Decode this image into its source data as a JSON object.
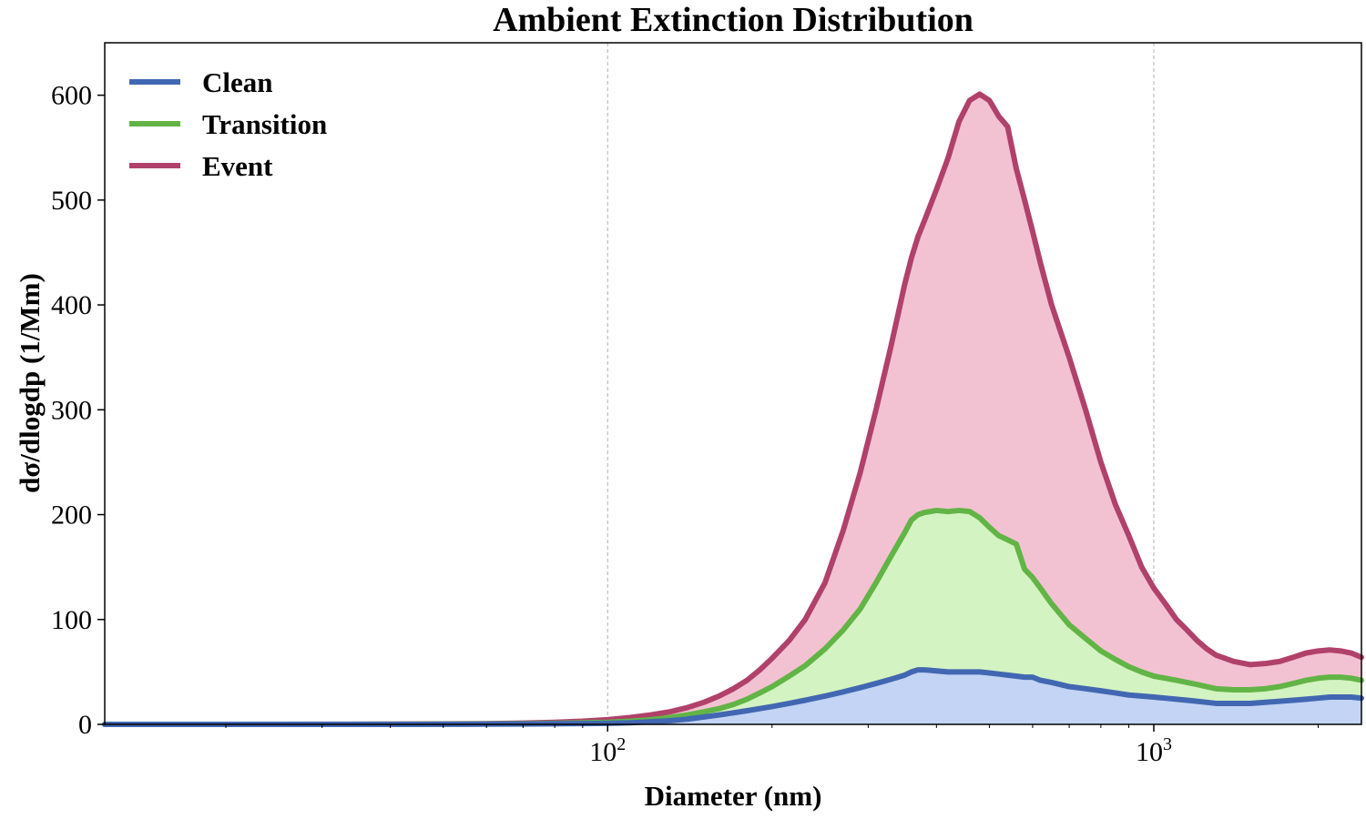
{
  "chart_data": {
    "type": "area",
    "title": "Ambient Extinction Distribution",
    "xlabel": "Diameter (nm)",
    "ylabel": "dσ/dlogdp (1/Mm)",
    "xscale": "log",
    "xlim": [
      12,
      2400
    ],
    "ylim": [
      0,
      650
    ],
    "yticks": [
      0,
      100,
      200,
      300,
      400,
      500,
      600
    ],
    "xticks": [
      {
        "value": 100,
        "base": "10",
        "exp": "2"
      },
      {
        "value": 1000,
        "base": "10",
        "exp": "3"
      }
    ],
    "grid": "vertical-major-dashed",
    "legend_position": "top-left",
    "x": [
      12,
      20,
      30,
      40,
      50,
      60,
      70,
      80,
      90,
      100,
      110,
      120,
      130,
      140,
      150,
      160,
      170,
      180,
      190,
      200,
      215,
      230,
      250,
      270,
      290,
      310,
      330,
      350,
      360,
      370,
      380,
      400,
      420,
      440,
      460,
      480,
      500,
      520,
      540,
      560,
      580,
      600,
      620,
      650,
      700,
      750,
      800,
      850,
      900,
      950,
      1000,
      1050,
      1100,
      1150,
      1200,
      1250,
      1300,
      1400,
      1500,
      1600,
      1700,
      1800,
      1900,
      2000,
      2100,
      2200,
      2300,
      2400
    ],
    "series": [
      {
        "name": "Clean",
        "color": "#4267b2",
        "fill": "#c3d4f4",
        "values": [
          0,
          0,
          0,
          0,
          0.1,
          0.2,
          0.3,
          0.5,
          0.8,
          1,
          1.5,
          2.5,
          3.5,
          5,
          7,
          9,
          11,
          13,
          15,
          17,
          20,
          23,
          27,
          31,
          35,
          39,
          43,
          47,
          50,
          52,
          52,
          51,
          50,
          50,
          50,
          50,
          49,
          48,
          47,
          46,
          45,
          45,
          42,
          40,
          36,
          34,
          32,
          30,
          28,
          27,
          26,
          25,
          24,
          23,
          22,
          21,
          20,
          20,
          20,
          21,
          22,
          23,
          24,
          25,
          26,
          26,
          26,
          25
        ]
      },
      {
        "name": "Transition",
        "color": "#62b446",
        "fill": "#d4f3c2",
        "values": [
          0,
          0,
          0,
          0.1,
          0.2,
          0.4,
          0.6,
          1,
          1.5,
          2,
          3,
          4.5,
          6.5,
          9,
          12,
          15,
          19,
          24,
          30,
          36,
          46,
          56,
          72,
          90,
          110,
          135,
          160,
          183,
          195,
          200,
          202,
          204,
          203,
          204,
          203,
          197,
          188,
          180,
          176,
          172,
          148,
          140,
          130,
          115,
          95,
          82,
          70,
          62,
          55,
          50,
          46,
          44,
          42,
          40,
          38,
          36,
          34,
          33,
          33,
          34,
          36,
          39,
          42,
          44,
          45,
          45,
          44,
          42
        ]
      },
      {
        "name": "Event",
        "color": "#b0416a",
        "fill": "#f3c2d2",
        "values": [
          0,
          0,
          0.1,
          0.2,
          0.4,
          0.7,
          1.2,
          2,
          3,
          4.5,
          6.5,
          9,
          12,
          16,
          21,
          27,
          34,
          42,
          52,
          63,
          80,
          100,
          135,
          185,
          240,
          300,
          360,
          420,
          445,
          465,
          480,
          510,
          540,
          575,
          595,
          601,
          595,
          580,
          570,
          530,
          500,
          470,
          440,
          400,
          350,
          300,
          250,
          210,
          180,
          150,
          130,
          115,
          100,
          90,
          80,
          72,
          66,
          60,
          57,
          58,
          60,
          64,
          68,
          70,
          71,
          70,
          68,
          64
        ]
      }
    ]
  }
}
